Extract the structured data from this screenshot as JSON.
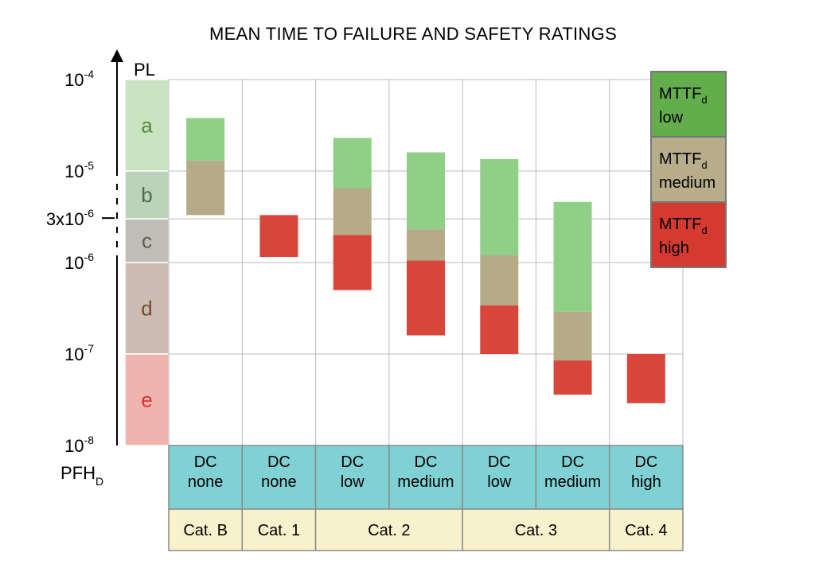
{
  "chart_data": {
    "type": "floating-bar",
    "title": "MEAN TIME TO FAILURE AND SAFETY RATINGS",
    "y_axis": {
      "label_top": "PL",
      "label_bottom": {
        "main": "PFH",
        "sub": "D"
      },
      "scale": "log",
      "range": [
        1e-08,
        0.0001
      ],
      "ticks": [
        {
          "base": "10",
          "exp": "-4",
          "value": 0.0001
        },
        {
          "base": "10",
          "exp": "-5",
          "value": 1e-05
        },
        {
          "base": "3x10",
          "exp": "-6",
          "value": 3e-06
        },
        {
          "base": "10",
          "exp": "-6",
          "value": 1e-06
        },
        {
          "base": "10",
          "exp": "-7",
          "value": 1e-07
        },
        {
          "base": "10",
          "exp": "-8",
          "value": 1e-08
        }
      ]
    },
    "performance_levels": [
      {
        "letter": "a",
        "upper": 0.0001,
        "lower": 1e-05,
        "fill": "#c9e3c0",
        "text_color": "#4e8a3c"
      },
      {
        "letter": "b",
        "upper": 1e-05,
        "lower": 3e-06,
        "fill": "#bcd3bb",
        "text_color": "#4a6c52"
      },
      {
        "letter": "c",
        "upper": 3e-06,
        "lower": 1e-06,
        "fill": "#c0bcb6",
        "text_color": "#5a5a4c"
      },
      {
        "letter": "d",
        "upper": 1e-06,
        "lower": 1e-07,
        "fill": "#cbbdb4",
        "text_color": "#7a4a2a"
      },
      {
        "letter": "e",
        "upper": 1e-07,
        "lower": 1e-08,
        "fill": "#f0b4ae",
        "text_color": "#d9332d"
      }
    ],
    "columns": [
      {
        "dc_line1": "DC",
        "dc_line2": "none"
      },
      {
        "dc_line1": "DC",
        "dc_line2": "none"
      },
      {
        "dc_line1": "DC",
        "dc_line2": "low"
      },
      {
        "dc_line1": "DC",
        "dc_line2": "medium"
      },
      {
        "dc_line1": "DC",
        "dc_line2": "low"
      },
      {
        "dc_line1": "DC",
        "dc_line2": "medium"
      },
      {
        "dc_line1": "DC",
        "dc_line2": "high"
      }
    ],
    "categories": [
      {
        "label": "Cat. B",
        "span": [
          0,
          0
        ]
      },
      {
        "label": "Cat. 1",
        "span": [
          1,
          1
        ]
      },
      {
        "label": "Cat. 2",
        "span": [
          2,
          3
        ]
      },
      {
        "label": "Cat. 3",
        "span": [
          4,
          5
        ]
      },
      {
        "label": "Cat. 4",
        "span": [
          6,
          6
        ]
      }
    ],
    "series": [
      {
        "name": "low",
        "legend_main": "MTTF",
        "legend_sub": "d",
        "legend_line2": "low",
        "color": "#8fcf86",
        "legend_color": "#63ad4d",
        "ranges": [
          [
            3.8e-05,
            1.3e-05
          ],
          null,
          [
            2.3e-05,
            6.5e-06
          ],
          [
            1.6e-05,
            2.3e-06
          ],
          [
            1.35e-05,
            1.2e-06
          ],
          [
            4.6e-06,
            2.9e-07
          ],
          null
        ]
      },
      {
        "name": "medium",
        "legend_main": "MTTF",
        "legend_sub": "d",
        "legend_line2": "medium",
        "color": "#b5ab88",
        "legend_color": "#b7ad8a",
        "ranges": [
          [
            1.3e-05,
            3.3e-06
          ],
          null,
          [
            6.5e-06,
            2e-06
          ],
          [
            2.3e-06,
            1.05e-06
          ],
          [
            1.2e-06,
            3.4e-07
          ],
          [
            2.9e-07,
            8.5e-08
          ],
          null
        ]
      },
      {
        "name": "high",
        "legend_main": "MTTF",
        "legend_sub": "d",
        "legend_line2": "high",
        "color": "#d8453a",
        "legend_color": "#d43a2f",
        "ranges": [
          null,
          [
            3.3e-06,
            1.15e-06
          ],
          [
            2e-06,
            5e-07
          ],
          [
            1.05e-06,
            1.6e-07
          ],
          [
            3.4e-07,
            1e-07
          ],
          [
            8.5e-08,
            3.6e-08
          ],
          [
            1e-07,
            2.9e-08
          ]
        ]
      }
    ],
    "colors": {
      "dc_fill": "#7fd1d3",
      "cat_fill": "#f7f2cc",
      "grid": "#bbbbbb",
      "border": "#8a8a8a"
    },
    "legend_placement": "top-right"
  }
}
